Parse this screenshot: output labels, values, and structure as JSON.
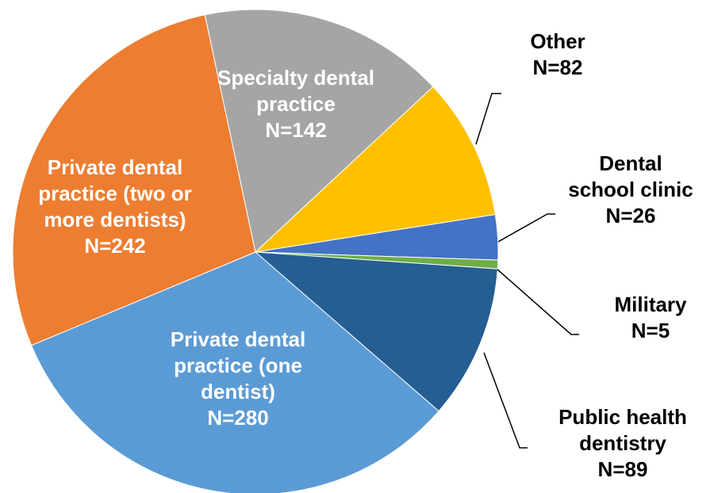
{
  "chart_data": {
    "type": "pie",
    "categories": [
      "Other",
      "Dental school clinic",
      "Military",
      "Public health dentistry",
      "Private dental practice (one dentist)",
      "Private dental practice (two or more dentists)",
      "Specialty dental practice"
    ],
    "values": [
      82,
      26,
      5,
      89,
      280,
      242,
      142
    ],
    "value_labels": [
      "N=82",
      "N=26",
      "N=5",
      "N=89",
      "N=280",
      "N=242",
      "N=142"
    ],
    "colors": [
      "#ffc000",
      "#4472c4",
      "#70ad47",
      "#255e91",
      "#5b9bd5",
      "#ed7d31",
      "#a5a5a5"
    ]
  }
}
